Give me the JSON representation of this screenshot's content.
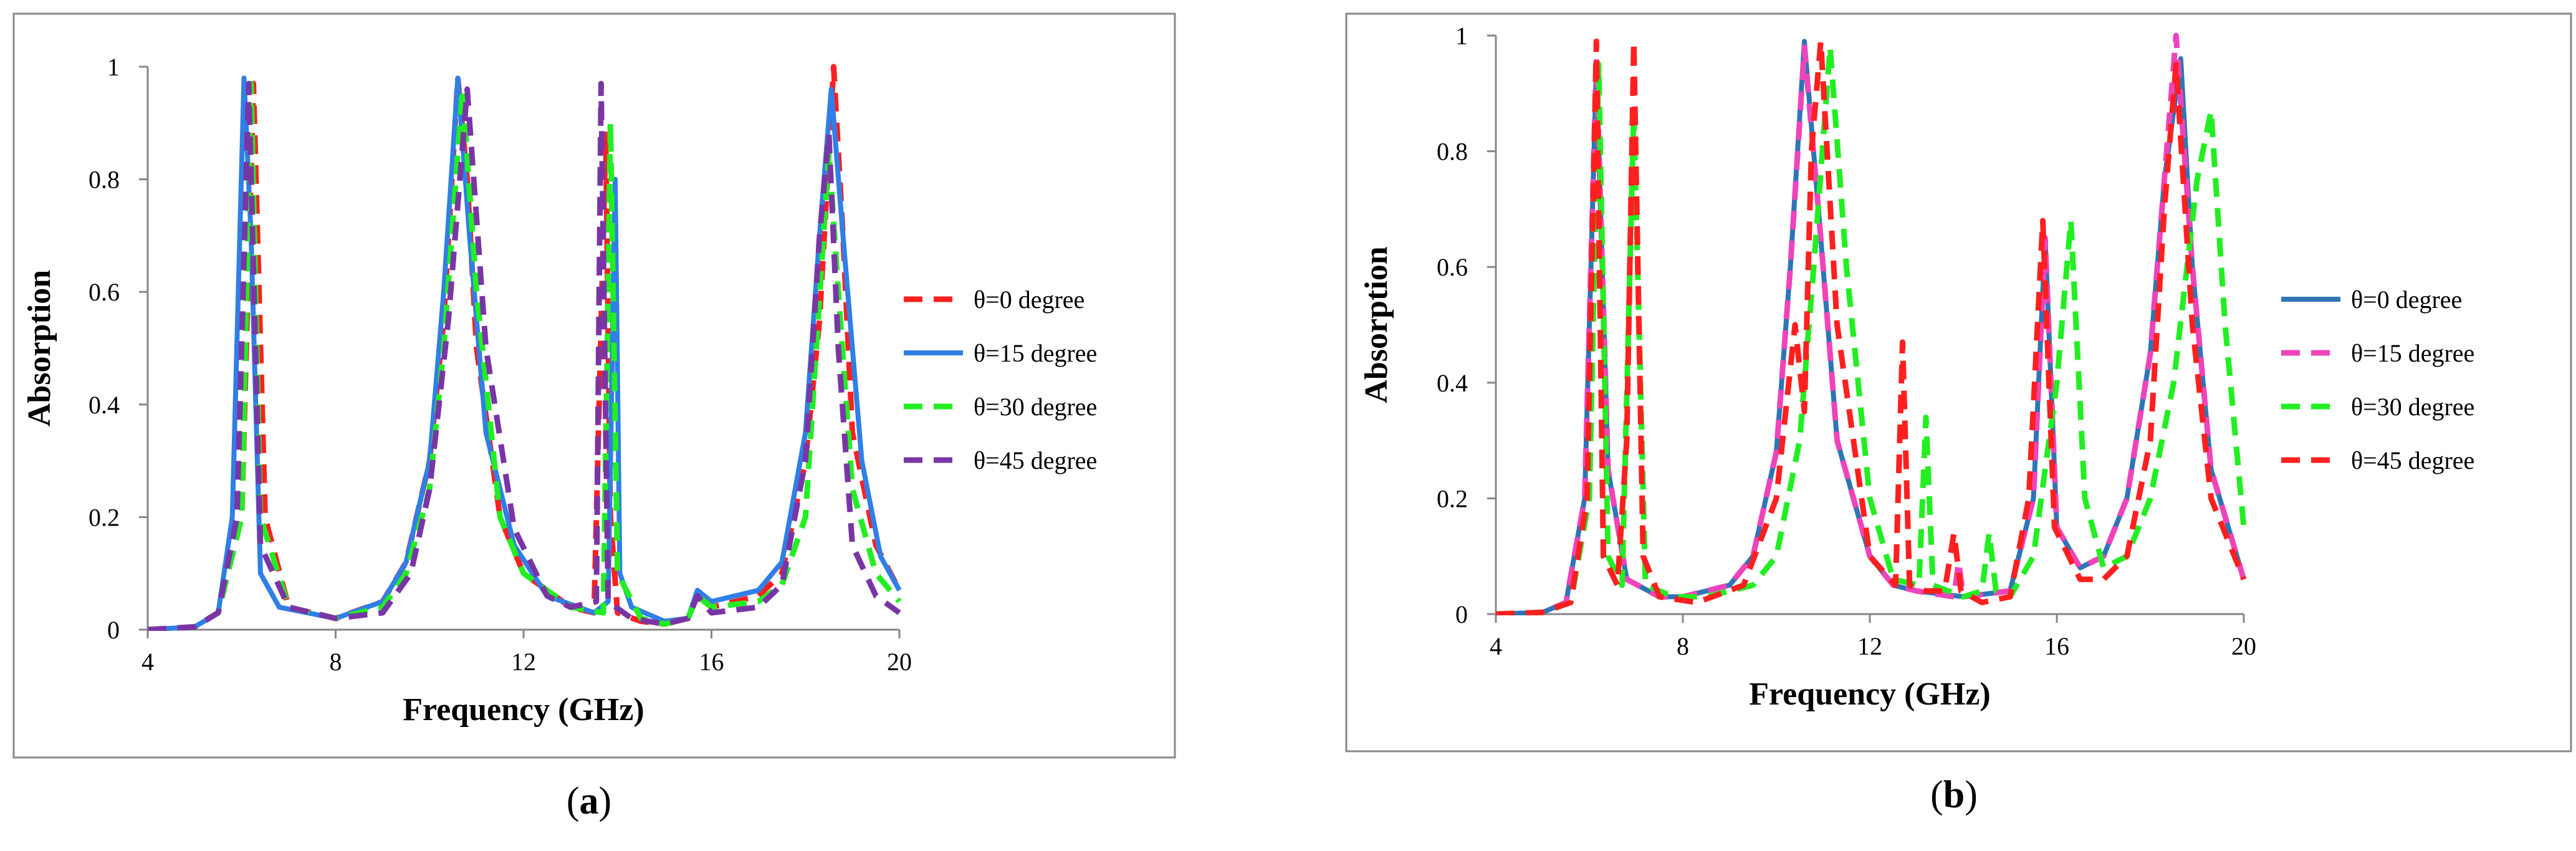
{
  "colors": {
    "red": "#ff1f1f",
    "blue": "#2f7fe6",
    "green": "#22ee22",
    "purple": "#7a35a5",
    "pink": "#ee44bb",
    "blue_b": "#2e75b6",
    "frame": "#888888",
    "axis": "#868686",
    "text": "#000000"
  },
  "chart_data": [
    {
      "type": "line",
      "panel": "a",
      "caption": "(a)",
      "title": "",
      "xlabel": "Frequency (GHz)",
      "ylabel": "Absorption",
      "xlim": [
        4,
        20
      ],
      "ylim": [
        0,
        1
      ],
      "xticks": [
        4,
        8,
        12,
        16,
        20
      ],
      "xtick_labels": [
        "4",
        "8",
        "12",
        "16",
        "20"
      ],
      "yticks": [
        0,
        0.2,
        0.4,
        0.6,
        0.8,
        1
      ],
      "ytick_labels": [
        "0",
        "0.2",
        "0.4",
        "0.6",
        "0.8",
        "1"
      ],
      "grid": false,
      "legend_position": "right",
      "series": [
        {
          "name": "θ=0 degree",
          "color": "red",
          "style": "dashed",
          "x": [
            4,
            5,
            5.5,
            6,
            6.25,
            6.5,
            7,
            8,
            9,
            9.5,
            10,
            10.3,
            10.6,
            10.8,
            11,
            11.5,
            12,
            13,
            13.5,
            13.75,
            13.85,
            14,
            14.5,
            15,
            15.5,
            15.7,
            16,
            17,
            17.5,
            18,
            18.3,
            18.6,
            18.8,
            19,
            19.5,
            20
          ],
          "values": [
            0,
            0.005,
            0.03,
            0.2,
            0.97,
            0.2,
            0.04,
            0.02,
            0.05,
            0.12,
            0.3,
            0.55,
            0.98,
            0.8,
            0.5,
            0.2,
            0.1,
            0.04,
            0.03,
            0.88,
            0.2,
            0.03,
            0.015,
            0.01,
            0.02,
            0.06,
            0.04,
            0.06,
            0.1,
            0.3,
            0.55,
            1.0,
            0.7,
            0.35,
            0.15,
            0.07
          ]
        },
        {
          "name": "θ=15 degree",
          "color": "blue",
          "style": "solid",
          "x": [
            4,
            5,
            5.5,
            5.8,
            6.05,
            6.2,
            6.4,
            6.8,
            8,
            9,
            9.5,
            10,
            10.3,
            10.6,
            10.85,
            11.2,
            11.8,
            12.5,
            13.5,
            13.8,
            13.95,
            14.05,
            14.3,
            15,
            15.5,
            15.7,
            16,
            17,
            17.5,
            18,
            18.3,
            18.55,
            18.8,
            19.2,
            19.6,
            20
          ],
          "values": [
            0,
            0.005,
            0.03,
            0.2,
            0.98,
            0.7,
            0.1,
            0.04,
            0.02,
            0.05,
            0.12,
            0.3,
            0.6,
            0.98,
            0.7,
            0.35,
            0.15,
            0.06,
            0.03,
            0.05,
            0.8,
            0.1,
            0.04,
            0.015,
            0.02,
            0.07,
            0.05,
            0.07,
            0.12,
            0.35,
            0.7,
            0.96,
            0.7,
            0.3,
            0.13,
            0.07
          ]
        },
        {
          "name": "θ=30 degree",
          "color": "green",
          "style": "dashed",
          "x": [
            4,
            5,
            5.5,
            6,
            6.2,
            6.4,
            7,
            8,
            9,
            9.5,
            10,
            10.3,
            10.7,
            11,
            11.5,
            12,
            13,
            13.7,
            13.85,
            14,
            14.5,
            15,
            15.5,
            15.7,
            16,
            17,
            17.5,
            18,
            18.5,
            18.7,
            19,
            19.5,
            20
          ],
          "values": [
            0,
            0.005,
            0.03,
            0.2,
            0.97,
            0.2,
            0.04,
            0.02,
            0.04,
            0.1,
            0.25,
            0.5,
            0.96,
            0.6,
            0.2,
            0.1,
            0.04,
            0.03,
            0.9,
            0.1,
            0.02,
            0.01,
            0.02,
            0.06,
            0.04,
            0.05,
            0.08,
            0.2,
            0.85,
            0.6,
            0.25,
            0.1,
            0.05
          ]
        },
        {
          "name": "θ=45 degree",
          "color": "purple",
          "style": "dashed",
          "x": [
            4,
            5,
            5.5,
            5.9,
            6.15,
            6.4,
            7,
            8,
            9,
            9.6,
            10,
            10.4,
            10.8,
            11.2,
            11.8,
            12.5,
            13,
            13.55,
            13.65,
            13.8,
            14.3,
            15,
            15.5,
            15.7,
            16,
            17,
            17.5,
            18,
            18.3,
            18.5,
            18.7,
            19,
            19.5,
            20
          ],
          "values": [
            0,
            0.005,
            0.03,
            0.2,
            0.97,
            0.15,
            0.04,
            0.02,
            0.03,
            0.1,
            0.25,
            0.55,
            0.96,
            0.5,
            0.18,
            0.06,
            0.04,
            0.05,
            0.97,
            0.05,
            0.02,
            0.01,
            0.02,
            0.06,
            0.03,
            0.04,
            0.08,
            0.3,
            0.7,
            0.88,
            0.5,
            0.15,
            0.06,
            0.03
          ]
        }
      ]
    },
    {
      "type": "line",
      "panel": "b",
      "caption": "(b)",
      "title": "",
      "xlabel": "Frequency (GHz)",
      "ylabel": "Absorption",
      "xlim": [
        4,
        20
      ],
      "ylim": [
        0,
        1
      ],
      "xticks": [
        4,
        8,
        12,
        16,
        20
      ],
      "xtick_labels": [
        "4",
        "8",
        "12",
        "16",
        "20"
      ],
      "yticks": [
        0,
        0.2,
        0.4,
        0.6,
        0.8,
        1
      ],
      "ytick_labels": [
        "0",
        "0.2",
        "0.4",
        "0.6",
        "0.8",
        "1"
      ],
      "grid": false,
      "legend_position": "right",
      "series": [
        {
          "name": "θ=0 degree",
          "color": "blue_b",
          "style": "solid",
          "x": [
            4,
            5,
            5.5,
            5.9,
            6.15,
            6.4,
            6.8,
            7.5,
            8,
            9,
            9.5,
            10,
            10.3,
            10.6,
            10.9,
            11.3,
            12,
            12.5,
            13,
            14,
            15,
            15.5,
            15.75,
            16,
            16.5,
            17,
            17.5,
            18,
            18.3,
            18.65,
            18.9,
            19.3,
            20
          ],
          "values": [
            0,
            0.003,
            0.02,
            0.2,
            0.95,
            0.25,
            0.06,
            0.03,
            0.03,
            0.05,
            0.1,
            0.28,
            0.6,
            0.99,
            0.7,
            0.3,
            0.1,
            0.05,
            0.04,
            0.03,
            0.04,
            0.2,
            0.65,
            0.15,
            0.08,
            0.1,
            0.2,
            0.45,
            0.75,
            0.96,
            0.6,
            0.25,
            0.06
          ]
        },
        {
          "name": "θ=15 degree",
          "color": "pink",
          "style": "dashed",
          "x": [
            4,
            5,
            5.5,
            5.9,
            6.15,
            6.4,
            6.8,
            7.5,
            8,
            9,
            9.5,
            10,
            10.3,
            10.6,
            10.9,
            11.3,
            12,
            12.5,
            13,
            13.8,
            13.9,
            14,
            15,
            15.5,
            15.75,
            16,
            16.5,
            17,
            17.5,
            18,
            18.3,
            18.55,
            18.9,
            19.3,
            20
          ],
          "values": [
            0,
            0.003,
            0.02,
            0.2,
            0.96,
            0.25,
            0.06,
            0.03,
            0.03,
            0.05,
            0.1,
            0.28,
            0.6,
            0.98,
            0.7,
            0.3,
            0.1,
            0.05,
            0.04,
            0.03,
            0.09,
            0.03,
            0.04,
            0.2,
            0.65,
            0.15,
            0.08,
            0.1,
            0.2,
            0.45,
            0.75,
            1.0,
            0.6,
            0.25,
            0.06
          ]
        },
        {
          "name": "θ=30 degree",
          "color": "green",
          "style": "dashed",
          "x": [
            4,
            5,
            5.6,
            6.0,
            6.2,
            6.4,
            6.7,
            6.95,
            7.2,
            7.8,
            8.5,
            9.5,
            10,
            10.5,
            10.8,
            11.15,
            11.5,
            12,
            12.5,
            13.05,
            13.2,
            13.35,
            14,
            14.4,
            14.55,
            14.7,
            15,
            15.5,
            16,
            16.3,
            16.6,
            17,
            17.5,
            18,
            18.5,
            19,
            19.3,
            19.6,
            20
          ],
          "values": [
            0,
            0.003,
            0.02,
            0.2,
            0.95,
            0.1,
            0.05,
            0.87,
            0.05,
            0.03,
            0.03,
            0.05,
            0.1,
            0.3,
            0.6,
            0.98,
            0.6,
            0.2,
            0.06,
            0.05,
            0.34,
            0.05,
            0.03,
            0.04,
            0.14,
            0.04,
            0.03,
            0.1,
            0.4,
            0.68,
            0.2,
            0.08,
            0.1,
            0.2,
            0.4,
            0.75,
            0.87,
            0.5,
            0.15
          ]
        },
        {
          "name": "θ=45 degree",
          "color": "red",
          "style": "dashed",
          "x": [
            4,
            5,
            5.6,
            5.95,
            6.15,
            6.3,
            6.6,
            6.8,
            6.95,
            7.15,
            7.5,
            8.3,
            9.3,
            10,
            10.4,
            10.6,
            10.75,
            10.95,
            11.3,
            12,
            12.55,
            12.7,
            12.85,
            13.2,
            13.6,
            13.8,
            13.95,
            14.4,
            15,
            15.4,
            15.7,
            15.95,
            16.5,
            17,
            17.5,
            18,
            18.3,
            18.55,
            18.9,
            19.3,
            20
          ],
          "values": [
            0,
            0.003,
            0.02,
            0.2,
            0.99,
            0.1,
            0.05,
            0.3,
            0.99,
            0.1,
            0.03,
            0.02,
            0.05,
            0.2,
            0.5,
            0.35,
            0.8,
            0.99,
            0.5,
            0.1,
            0.05,
            0.47,
            0.05,
            0.04,
            0.04,
            0.14,
            0.04,
            0.02,
            0.03,
            0.2,
            0.68,
            0.15,
            0.06,
            0.06,
            0.1,
            0.3,
            0.7,
            0.95,
            0.5,
            0.2,
            0.06
          ]
        }
      ]
    }
  ]
}
